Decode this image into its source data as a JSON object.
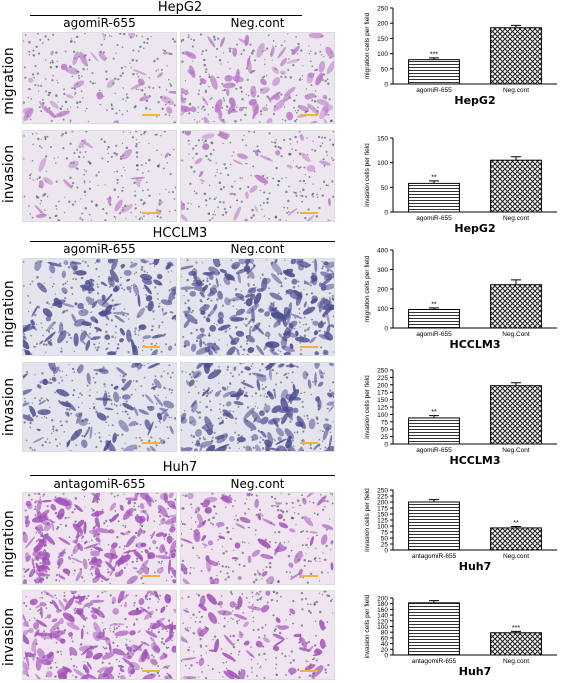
{
  "groups": [
    {
      "title": "HepG2",
      "cols": [
        "agomiR-655",
        "Neg.cont"
      ],
      "rows": [
        "migration",
        "invasion"
      ],
      "tone": "hepg2"
    },
    {
      "title": "HCCLM3",
      "cols": [
        "agomiR-655",
        "Neg.cont"
      ],
      "rows": [
        "migration",
        "invasion"
      ],
      "tone": "hcclm3"
    },
    {
      "title": "Huh7",
      "cols": [
        "antagomiR-655",
        "Neg.cont"
      ],
      "rows": [
        "migration",
        "invasion"
      ],
      "tone": "huh7"
    }
  ],
  "colors": {
    "hepg2_cell": "#b977c6",
    "hcclm3_cell": "#4c4c8f",
    "huh7_cell": "#a04fb8",
    "dots": "#3a3a5a",
    "scale_bar": "#f3b23a"
  },
  "chart_data": [
    {
      "type": "bar",
      "title": "HepG2",
      "ylabel": "migration cells per field",
      "categories": [
        "agomiR-655",
        "Neg.cont"
      ],
      "values": [
        80,
        185
      ],
      "errors": [
        6,
        8
      ],
      "sig": [
        "***",
        ""
      ],
      "ylim": [
        0,
        250
      ],
      "yticks": [
        0,
        50,
        100,
        150,
        200,
        250
      ]
    },
    {
      "type": "bar",
      "title": "HepG2",
      "ylabel": "invasion cells per field",
      "categories": [
        "agomiR-655",
        "Neg.cont"
      ],
      "values": [
        58,
        105
      ],
      "errors": [
        5,
        7
      ],
      "sig": [
        "**",
        ""
      ],
      "ylim": [
        0,
        150
      ],
      "yticks": [
        0,
        50,
        100,
        150
      ]
    },
    {
      "type": "bar",
      "title": "HCCLM3",
      "ylabel": "migration cells per field",
      "categories": [
        "agomiR-655",
        "Neg.Cont"
      ],
      "values": [
        95,
        222
      ],
      "errors": [
        8,
        25
      ],
      "sig": [
        "**",
        ""
      ],
      "ylim": [
        0,
        400
      ],
      "yticks": [
        0,
        100,
        200,
        300,
        400
      ]
    },
    {
      "type": "bar",
      "title": "HCCLM3",
      "ylabel": "invasion cells per field",
      "categories": [
        "agomiR-655",
        "Neg.Cont"
      ],
      "values": [
        88,
        197
      ],
      "errors": [
        8,
        10
      ],
      "sig": [
        "**",
        ""
      ],
      "ylim": [
        0,
        250
      ],
      "yticks": [
        0,
        25,
        50,
        75,
        100,
        125,
        150,
        175,
        200,
        225,
        250
      ]
    },
    {
      "type": "bar",
      "title": "Huh7",
      "ylabel": "invasion cells per field",
      "categories": [
        "antagomiR-655",
        "Neg.cont"
      ],
      "values": [
        200,
        92
      ],
      "errors": [
        10,
        6
      ],
      "sig": [
        "",
        "**"
      ],
      "ylim": [
        0,
        250
      ],
      "yticks": [
        0,
        25,
        50,
        75,
        100,
        125,
        150,
        175,
        200,
        225,
        250
      ]
    },
    {
      "type": "bar",
      "title": "Huh7",
      "ylabel": "invasion cells per field",
      "categories": [
        "antagomiR-655",
        "Neg.cont"
      ],
      "values": [
        183,
        78
      ],
      "errors": [
        8,
        5
      ],
      "sig": [
        "",
        "***"
      ],
      "ylim": [
        0,
        200
      ],
      "yticks": [
        0,
        20,
        40,
        60,
        80,
        100,
        120,
        140,
        160,
        180,
        200
      ]
    }
  ]
}
